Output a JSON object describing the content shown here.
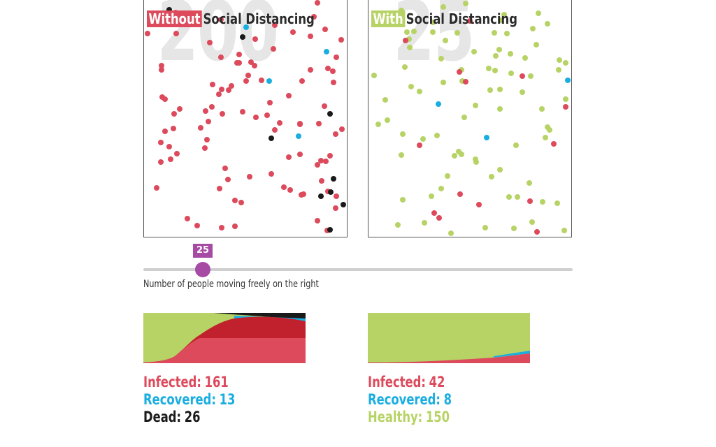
{
  "colors": {
    "infected": "#dc4a5c",
    "infected_dark": "#c0212c",
    "recovered": "#1aaee0",
    "dead": "#1a1a1a",
    "healthy": "#b7d365",
    "slider_accent": "#a64aa4",
    "background_count": "#e6e6e6"
  },
  "left_panel": {
    "title_tag": "Without",
    "title_rest": "Social Distancing",
    "big_count": "200",
    "stats": {
      "infected_label": "Infected:",
      "infected_value": "161",
      "recovered_label": "Recovered:",
      "recovered_value": "13",
      "third_label": "Dead:",
      "third_value": "26"
    }
  },
  "right_panel": {
    "title_tag": "With",
    "title_rest": "Social Distancing",
    "big_count": "25",
    "stats": {
      "infected_label": "Infected:",
      "infected_value": "42",
      "recovered_label": "Recovered:",
      "recovered_value": "8",
      "third_label": "Healthy:",
      "third_value": "150"
    }
  },
  "slider": {
    "value": "25",
    "fraction": 0.125,
    "caption": "Number of people moving freely on the right"
  }
}
